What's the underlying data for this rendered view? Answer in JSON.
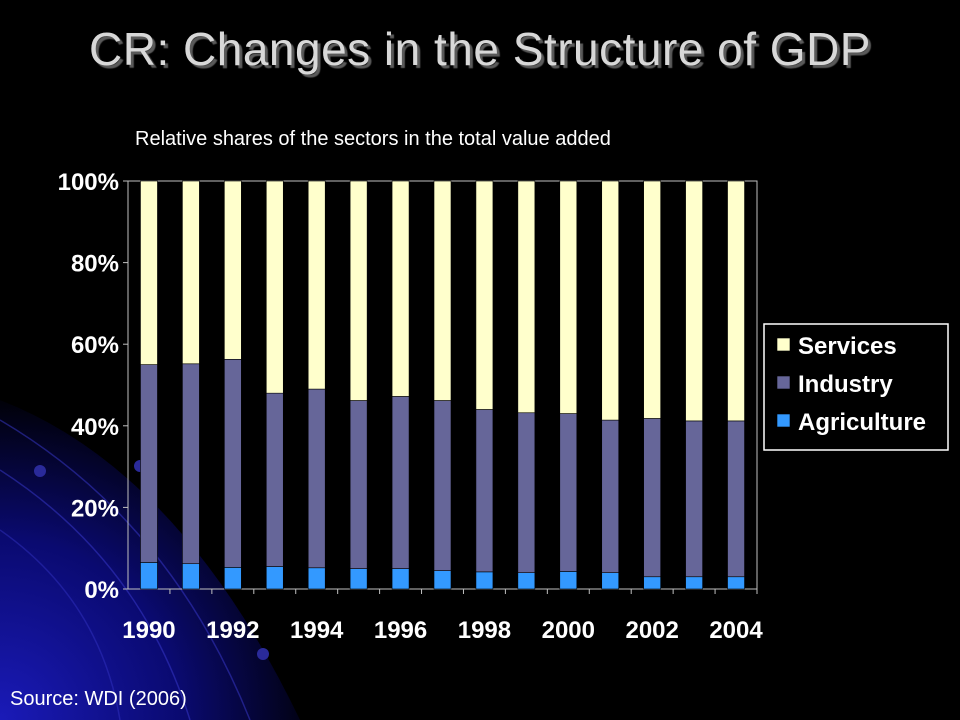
{
  "slide": {
    "title": "CR: Changes in the Structure of GDP",
    "source": "Source: WDI (2006)"
  },
  "chart_data": {
    "type": "bar",
    "stacked": true,
    "title": "Relative shares of the sectors in the total value added",
    "xlabel": "",
    "ylabel": "",
    "ylim": [
      0,
      100
    ],
    "yticks": [
      "0%",
      "20%",
      "40%",
      "60%",
      "80%",
      "100%"
    ],
    "categories": [
      "1990",
      "1991",
      "1992",
      "1993",
      "1994",
      "1995",
      "1996",
      "1997",
      "1998",
      "1999",
      "2000",
      "2001",
      "2002",
      "2003",
      "2004"
    ],
    "x_tick_labels": [
      "1990",
      "1992",
      "1994",
      "1996",
      "1998",
      "2000",
      "2002",
      "2004"
    ],
    "series": [
      {
        "name": "Agriculture",
        "color": "#3399ff",
        "values": [
          6.5,
          6.2,
          5.3,
          5.5,
          5.2,
          5.0,
          5.0,
          4.5,
          4.2,
          4.0,
          4.3,
          4.0,
          3.0,
          3.0,
          3.0
        ]
      },
      {
        "name": "Industry",
        "color": "#666699",
        "values": [
          48.5,
          49.0,
          51.0,
          42.5,
          43.8,
          41.2,
          42.2,
          41.7,
          39.8,
          39.2,
          38.7,
          37.4,
          38.8,
          38.2,
          38.2
        ]
      },
      {
        "name": "Services",
        "color": "#ffffcc",
        "values": [
          45.0,
          44.8,
          43.7,
          52.0,
          51.0,
          53.8,
          52.8,
          53.8,
          56.0,
          56.8,
          57.0,
          58.6,
          58.2,
          58.8,
          58.8
        ]
      }
    ],
    "legend_order": [
      "Services",
      "Industry",
      "Agriculture"
    ],
    "legend_position": "right",
    "grid": false
  }
}
